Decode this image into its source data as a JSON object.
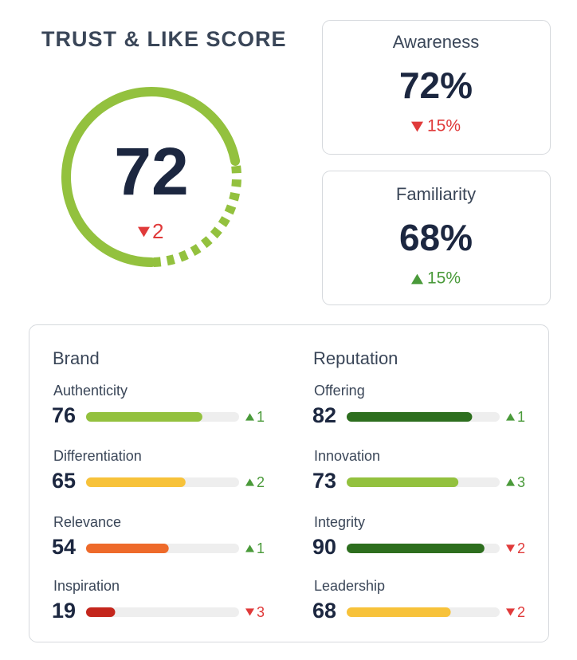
{
  "title": "TRUST & LIKE SCORE",
  "range": [
    0,
    100
  ],
  "score": {
    "value": 72,
    "change": 2,
    "direction": "down",
    "color": "#93c13e"
  },
  "cards": [
    {
      "label": "Awareness",
      "value": "72%",
      "change": "15%",
      "direction": "down"
    },
    {
      "label": "Familiarity",
      "value": "68%",
      "change": "15%",
      "direction": "up"
    }
  ],
  "groups": [
    {
      "title": "Brand",
      "items": [
        {
          "label": "Authenticity",
          "value": 76,
          "change": 1,
          "direction": "up",
          "color": "#93c13e"
        },
        {
          "label": "Differentiation",
          "value": 65,
          "change": 2,
          "direction": "up",
          "color": "#f7c23a"
        },
        {
          "label": "Relevance",
          "value": 54,
          "change": 1,
          "direction": "up",
          "color": "#ee6a2a"
        },
        {
          "label": "Inspiration",
          "value": 19,
          "change": 3,
          "direction": "down",
          "color": "#c4261c"
        }
      ]
    },
    {
      "title": "Reputation",
      "items": [
        {
          "label": "Offering",
          "value": 82,
          "change": 1,
          "direction": "up",
          "color": "#2d6e1e"
        },
        {
          "label": "Innovation",
          "value": 73,
          "change": 3,
          "direction": "up",
          "color": "#93c13e"
        },
        {
          "label": "Integrity",
          "value": 90,
          "change": 2,
          "direction": "down",
          "color": "#2d6e1e"
        },
        {
          "label": "Leadership",
          "value": 68,
          "change": 2,
          "direction": "down",
          "color": "#f7c23a"
        }
      ]
    }
  ]
}
